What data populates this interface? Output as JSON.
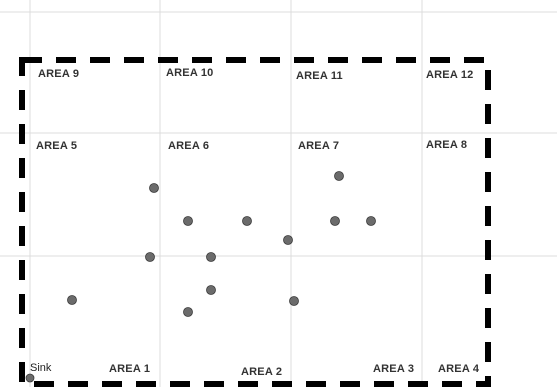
{
  "areas": [
    {
      "id": "area-1",
      "label": "AREA 1"
    },
    {
      "id": "area-2",
      "label": "AREA 2"
    },
    {
      "id": "area-3",
      "label": "AREA 3"
    },
    {
      "id": "area-4",
      "label": "AREA 4"
    },
    {
      "id": "area-5",
      "label": "AREA 5"
    },
    {
      "id": "area-6",
      "label": "AREA 6"
    },
    {
      "id": "area-7",
      "label": "AREA 7"
    },
    {
      "id": "area-8",
      "label": "AREA 8"
    },
    {
      "id": "area-9",
      "label": "AREA 9"
    },
    {
      "id": "area-10",
      "label": "AREA 10"
    },
    {
      "id": "area-11",
      "label": "AREA 11"
    },
    {
      "id": "area-12",
      "label": "AREA 12"
    }
  ],
  "sink": {
    "label": "Sink"
  },
  "node_count": 14,
  "colors": {
    "node_fill": "#6b6b6b",
    "boundary": "#000000",
    "grid": "#dcdcdc"
  }
}
